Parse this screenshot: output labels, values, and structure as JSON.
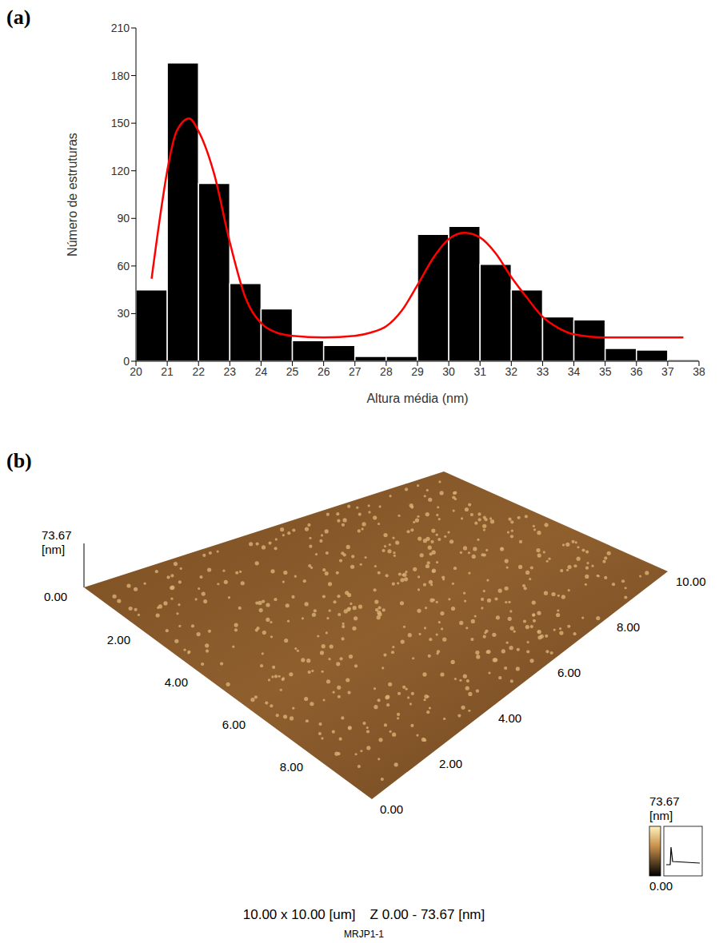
{
  "chart_data": {
    "type": "histogram",
    "panel_label": "(a)",
    "x_label": "Altura média (nm)",
    "y_label": "Número de estruturas",
    "bins": [
      20,
      21,
      22,
      23,
      24,
      25,
      26,
      27,
      28,
      29,
      30,
      31,
      32,
      33,
      34,
      35,
      36,
      37,
      38
    ],
    "values": [
      45,
      188,
      112,
      49,
      33,
      13,
      10,
      3,
      3,
      80,
      85,
      61,
      45,
      28,
      26,
      8,
      7,
      1
    ],
    "color": "#000000",
    "fit_curve": {
      "type": "line",
      "color": "#ff0000",
      "x": [
        20.5,
        20.8,
        21.0,
        21.3,
        21.7,
        22.0,
        22.5,
        23.0,
        23.5,
        24.0,
        24.5,
        25.0,
        26.0,
        27.0,
        27.5,
        28.0,
        28.5,
        29.0,
        29.5,
        30.0,
        30.5,
        31.0,
        31.5,
        32.0,
        32.5,
        33.0,
        33.5,
        34.0,
        35.0,
        36.0,
        37.5
      ],
      "values": [
        52,
        95,
        120,
        145,
        153,
        145,
        118,
        75,
        40,
        24,
        18,
        16,
        15,
        16,
        18,
        22,
        32,
        48,
        65,
        77,
        81,
        78,
        68,
        53,
        40,
        28,
        21,
        17,
        15,
        15,
        15
      ]
    },
    "xlim": [
      20,
      38
    ],
    "xticks": [
      20,
      21,
      22,
      23,
      24,
      25,
      26,
      27,
      28,
      29,
      30,
      31,
      32,
      33,
      34,
      35,
      36,
      37,
      38
    ],
    "ylim": [
      0,
      210
    ],
    "yticks": [
      0,
      30,
      60,
      90,
      120,
      150,
      180,
      210
    ],
    "grid": false
  },
  "afm_image": {
    "panel_label": "(b)",
    "z_max_label": "73.67",
    "z_unit": "[nm]",
    "z_min_label": "0.00",
    "left_ticks": [
      "2.00",
      "4.00",
      "6.00",
      "8.00"
    ],
    "right_ticks": [
      "0.00",
      "2.00",
      "4.00",
      "6.00",
      "8.00",
      "10.00"
    ],
    "colorbar_max": "73.67",
    "colorbar_unit": "[nm]",
    "colorbar_min": "0.00",
    "caption_size": "10.00 x 10.00 [um]",
    "caption_z": "Z  0.00  -  73.67 [nm]",
    "sample": "MRJP1-1"
  }
}
